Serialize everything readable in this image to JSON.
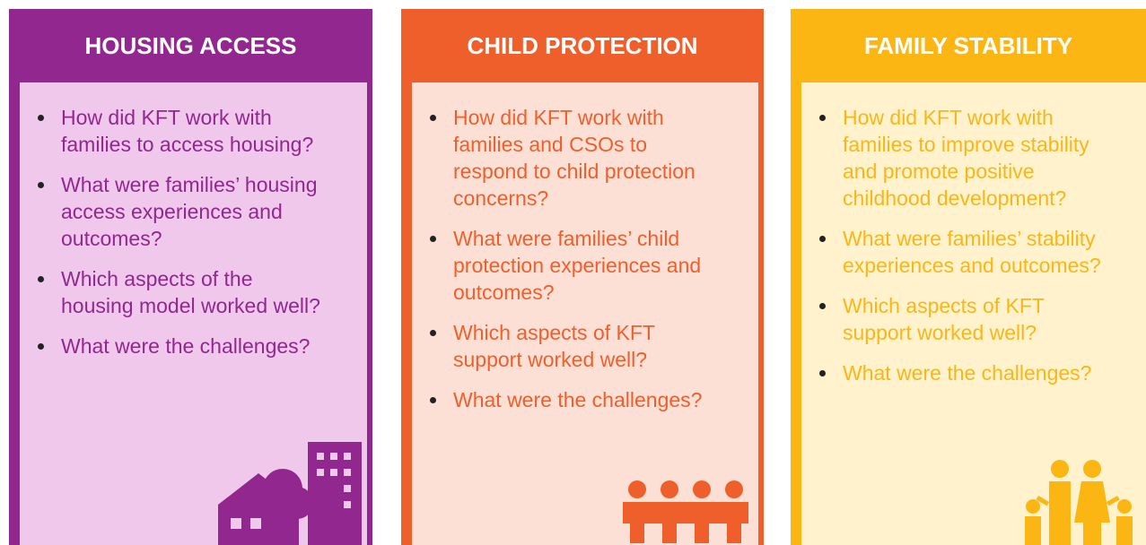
{
  "panels": [
    {
      "title": "HOUSING ACCESS",
      "items": [
        "How did KFT work with families to access housing?",
        "What were families’ housing access experiences and outcomes?",
        "Which aspects of the housing model worked well?",
        "What were the challenges?"
      ]
    },
    {
      "title": "CHILD PROTECTION",
      "items": [
        "How did KFT work with families and CSOs to respond to child protection concerns?",
        "What were families’ child protection experiences and outcomes?",
        "Which aspects of KFT support worked well?",
        "What were the challenges?"
      ]
    },
    {
      "title": "FAMILY STABILITY",
      "items": [
        "How did KFT work with families to improve stability and promote positive childhood development?",
        "What were families’ stability experiences and outcomes?",
        "Which aspects of KFT support worked well?",
        "What were the challenges?"
      ]
    }
  ]
}
